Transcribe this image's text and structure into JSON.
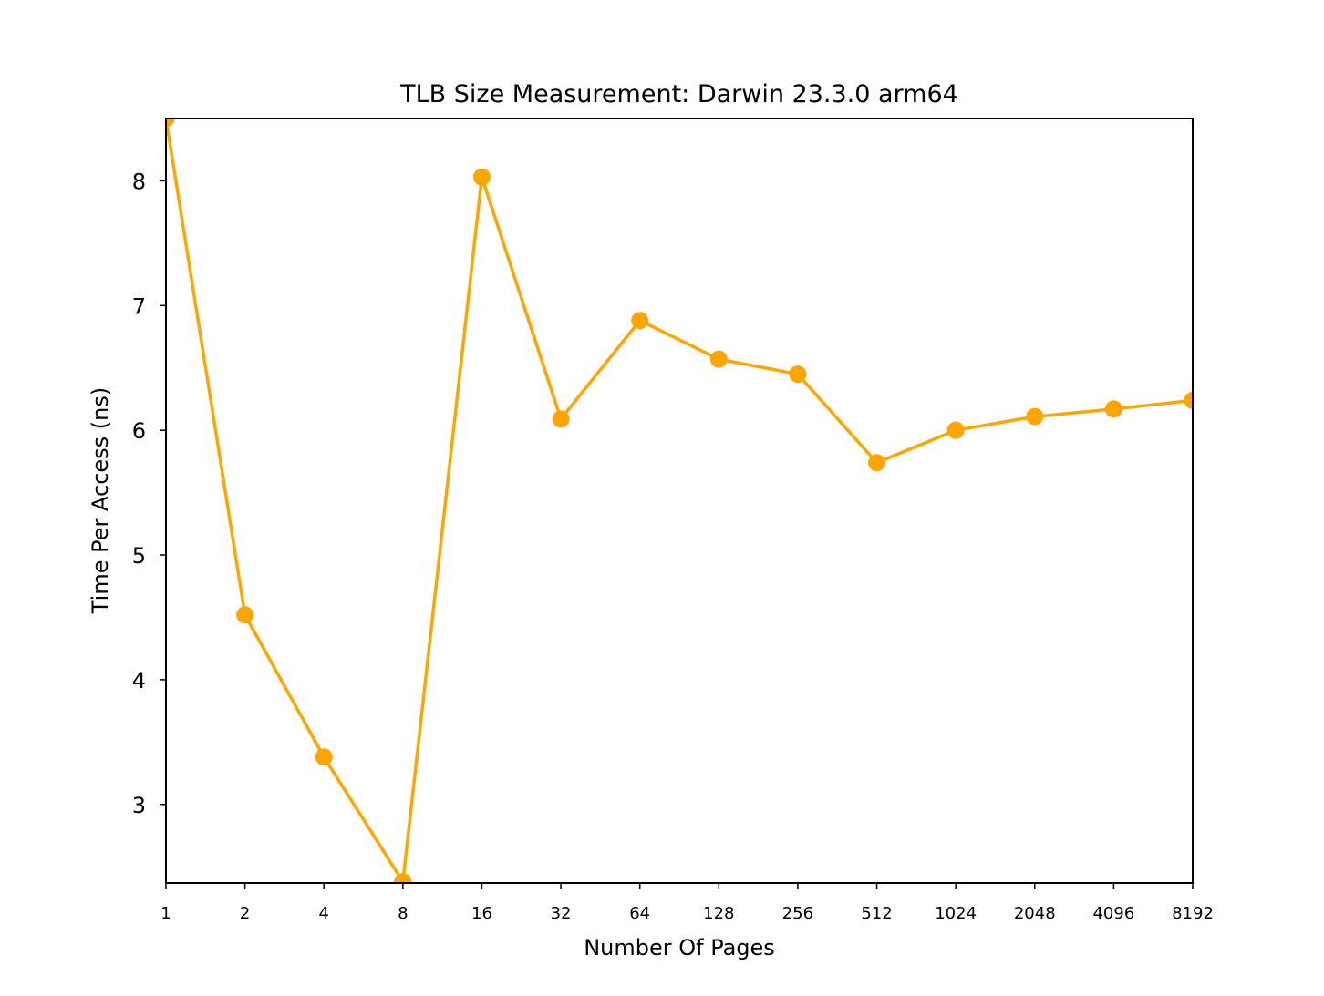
{
  "chart_data": {
    "type": "line",
    "title": "TLB Size Measurement: Darwin 23.3.0 arm64",
    "xlabel": "Number Of Pages",
    "ylabel": "Time Per Access (ns)",
    "x_scale": "log2",
    "x": [
      1,
      2,
      4,
      8,
      16,
      32,
      64,
      128,
      256,
      512,
      1024,
      2048,
      4096,
      8192
    ],
    "x_tick_labels": [
      "1",
      "2",
      "4",
      "8",
      "16",
      "32",
      "64",
      "128",
      "256",
      "512",
      "1024",
      "2048",
      "4096",
      "8192"
    ],
    "y_ticks": [
      3,
      4,
      5,
      6,
      7,
      8
    ],
    "y_tick_labels": [
      "3",
      "4",
      "5",
      "6",
      "7",
      "8"
    ],
    "ylim": [
      2.37,
      8.5
    ],
    "grid": false,
    "series": [
      {
        "values": [
          8.5,
          4.52,
          3.38,
          2.38,
          8.03,
          6.09,
          6.88,
          6.57,
          6.45,
          5.74,
          6.0,
          6.11,
          6.17,
          6.24
        ],
        "color": "#ffa500",
        "marker": "circle"
      }
    ]
  }
}
